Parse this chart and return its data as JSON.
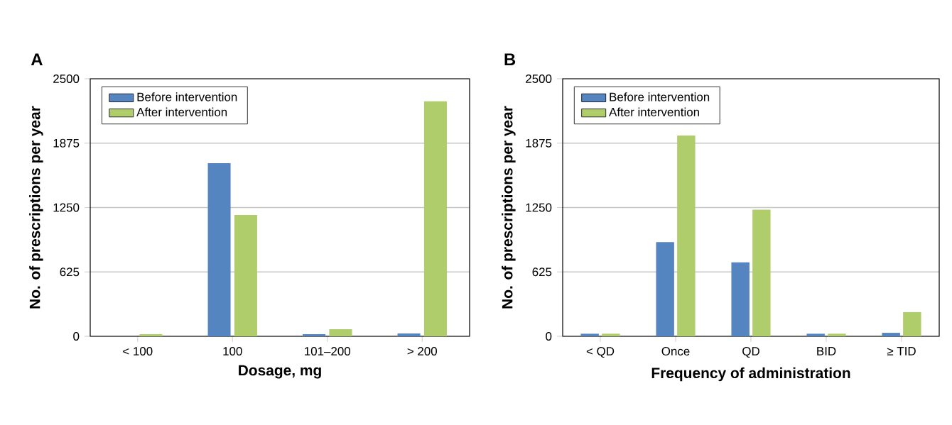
{
  "chart_data": [
    {
      "type": "bar",
      "title": "A",
      "xlabel": "Dosage, mg",
      "ylabel": "No. of prescriptions per year",
      "categories": [
        "< 100",
        "100",
        "101–200",
        "> 200"
      ],
      "series": [
        {
          "name": "Before intervention",
          "color": "#5585c0",
          "values": [
            0,
            1680,
            20,
            27
          ]
        },
        {
          "name": "After intervention",
          "color": "#afcd6b",
          "values": [
            20,
            1177,
            69,
            2281
          ]
        }
      ],
      "ylim": [
        0,
        2500
      ],
      "yticks": [
        0,
        625,
        1250,
        1875,
        2500
      ],
      "grid": "y",
      "legend": "top left"
    },
    {
      "type": "bar",
      "title": "B",
      "xlabel": "Frequency of administration",
      "ylabel": "No. of prescriptions per year",
      "categories": [
        "< QD",
        "Once",
        "QD",
        "BID",
        "≥ TID"
      ],
      "series": [
        {
          "name": "Before intervention",
          "color": "#5585c0",
          "values": [
            25,
            914,
            718,
            25,
            34
          ]
        },
        {
          "name": "After intervention",
          "color": "#afcd6b",
          "values": [
            25,
            1949,
            1230,
            25,
            235
          ]
        }
      ],
      "ylim": [
        0,
        2500
      ],
      "yticks": [
        0,
        625,
        1250,
        1875,
        2500
      ],
      "grid": "y",
      "legend": "top left"
    }
  ]
}
